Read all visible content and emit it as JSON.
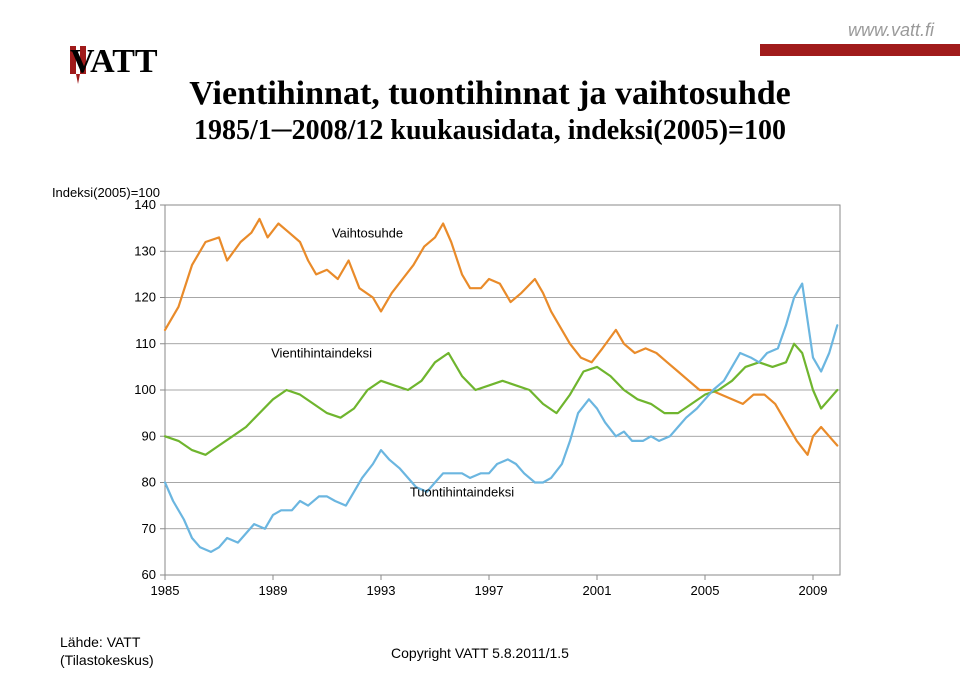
{
  "header": {
    "url": "www.vatt.fi",
    "logo_text": "VATT",
    "logo_red": "#a01b1b",
    "logo_black": "#000000"
  },
  "title": {
    "line1": "Vientihinnat, tuontihinnat ja vaihtosuhde",
    "line2": "1985/1─2008/12 kuukausidata, indeksi(2005)=100"
  },
  "chart": {
    "type": "line",
    "y_axis_title": "Indeksi(2005)=100",
    "y_axis_title_fontsize": 13,
    "ylim": [
      60,
      140
    ],
    "ytick_step": 10,
    "xlim": [
      1985,
      2010
    ],
    "xticks": [
      1985,
      1989,
      1993,
      1997,
      2001,
      2005,
      2009
    ],
    "background_color": "#ffffff",
    "grid_color": "#8a8a8a",
    "axis_color": "#8a8a8a",
    "tick_fontsize": 13,
    "tick_color": "#000000",
    "line_width": 2.2,
    "series": [
      {
        "name": "Vaihtosuhde",
        "label": "Vaihtosuhde",
        "color": "#e98b2a",
        "label_x": 1992.5,
        "label_y": 133,
        "data": [
          [
            1985.0,
            113
          ],
          [
            1985.5,
            118
          ],
          [
            1986.0,
            127
          ],
          [
            1986.5,
            132
          ],
          [
            1987.0,
            133
          ],
          [
            1987.3,
            128
          ],
          [
            1987.8,
            132
          ],
          [
            1988.2,
            134
          ],
          [
            1988.5,
            137
          ],
          [
            1988.8,
            133
          ],
          [
            1989.2,
            136
          ],
          [
            1989.6,
            134
          ],
          [
            1990.0,
            132
          ],
          [
            1990.3,
            128
          ],
          [
            1990.6,
            125
          ],
          [
            1991.0,
            126
          ],
          [
            1991.4,
            124
          ],
          [
            1991.8,
            128
          ],
          [
            1992.2,
            122
          ],
          [
            1992.7,
            120
          ],
          [
            1993.0,
            117
          ],
          [
            1993.4,
            121
          ],
          [
            1993.8,
            124
          ],
          [
            1994.2,
            127
          ],
          [
            1994.6,
            131
          ],
          [
            1995.0,
            133
          ],
          [
            1995.3,
            136
          ],
          [
            1995.6,
            132
          ],
          [
            1996.0,
            125
          ],
          [
            1996.3,
            122
          ],
          [
            1996.7,
            122
          ],
          [
            1997.0,
            124
          ],
          [
            1997.4,
            123
          ],
          [
            1997.8,
            119
          ],
          [
            1998.2,
            121
          ],
          [
            1998.7,
            124
          ],
          [
            1999.0,
            121
          ],
          [
            1999.3,
            117
          ],
          [
            1999.7,
            113
          ],
          [
            2000.0,
            110
          ],
          [
            2000.4,
            107
          ],
          [
            2000.8,
            106
          ],
          [
            2001.2,
            109
          ],
          [
            2001.7,
            113
          ],
          [
            2002.0,
            110
          ],
          [
            2002.4,
            108
          ],
          [
            2002.8,
            109
          ],
          [
            2003.2,
            108
          ],
          [
            2003.6,
            106
          ],
          [
            2004.0,
            104
          ],
          [
            2004.4,
            102
          ],
          [
            2004.8,
            100
          ],
          [
            2005.2,
            100
          ],
          [
            2005.6,
            99
          ],
          [
            2006.0,
            98
          ],
          [
            2006.4,
            97
          ],
          [
            2006.8,
            99
          ],
          [
            2007.2,
            99
          ],
          [
            2007.6,
            97
          ],
          [
            2008.0,
            93
          ],
          [
            2008.4,
            89
          ],
          [
            2008.8,
            86
          ],
          [
            2009.0,
            90
          ],
          [
            2009.3,
            92
          ],
          [
            2009.6,
            90
          ],
          [
            2009.9,
            88
          ]
        ]
      },
      {
        "name": "Vientihintaindeksi",
        "label": "Vientihintaindeksi",
        "color": "#6fb52e",
        "label_x": 1990.8,
        "label_y": 107,
        "data": [
          [
            1985.0,
            90
          ],
          [
            1985.5,
            89
          ],
          [
            1986.0,
            87
          ],
          [
            1986.5,
            86
          ],
          [
            1987.0,
            88
          ],
          [
            1987.5,
            90
          ],
          [
            1988.0,
            92
          ],
          [
            1988.5,
            95
          ],
          [
            1989.0,
            98
          ],
          [
            1989.5,
            100
          ],
          [
            1990.0,
            99
          ],
          [
            1990.5,
            97
          ],
          [
            1991.0,
            95
          ],
          [
            1991.5,
            94
          ],
          [
            1992.0,
            96
          ],
          [
            1992.5,
            100
          ],
          [
            1993.0,
            102
          ],
          [
            1993.5,
            101
          ],
          [
            1994.0,
            100
          ],
          [
            1994.5,
            102
          ],
          [
            1995.0,
            106
          ],
          [
            1995.5,
            108
          ],
          [
            1996.0,
            103
          ],
          [
            1996.5,
            100
          ],
          [
            1997.0,
            101
          ],
          [
            1997.5,
            102
          ],
          [
            1998.0,
            101
          ],
          [
            1998.5,
            100
          ],
          [
            1999.0,
            97
          ],
          [
            1999.5,
            95
          ],
          [
            2000.0,
            99
          ],
          [
            2000.5,
            104
          ],
          [
            2001.0,
            105
          ],
          [
            2001.5,
            103
          ],
          [
            2002.0,
            100
          ],
          [
            2002.5,
            98
          ],
          [
            2003.0,
            97
          ],
          [
            2003.5,
            95
          ],
          [
            2004.0,
            95
          ],
          [
            2004.5,
            97
          ],
          [
            2005.0,
            99
          ],
          [
            2005.5,
            100
          ],
          [
            2006.0,
            102
          ],
          [
            2006.5,
            105
          ],
          [
            2007.0,
            106
          ],
          [
            2007.5,
            105
          ],
          [
            2008.0,
            106
          ],
          [
            2008.3,
            110
          ],
          [
            2008.6,
            108
          ],
          [
            2009.0,
            100
          ],
          [
            2009.3,
            96
          ],
          [
            2009.6,
            98
          ],
          [
            2009.9,
            100
          ]
        ]
      },
      {
        "name": "Tuontihintaindeksi",
        "label": "Tuontihintaindeksi",
        "color": "#6bb6e0",
        "label_x": 1996.0,
        "label_y": 77,
        "data": [
          [
            1985.0,
            80
          ],
          [
            1985.3,
            76
          ],
          [
            1985.7,
            72
          ],
          [
            1986.0,
            68
          ],
          [
            1986.3,
            66
          ],
          [
            1986.7,
            65
          ],
          [
            1987.0,
            66
          ],
          [
            1987.3,
            68
          ],
          [
            1987.7,
            67
          ],
          [
            1988.0,
            69
          ],
          [
            1988.3,
            71
          ],
          [
            1988.7,
            70
          ],
          [
            1989.0,
            73
          ],
          [
            1989.3,
            74
          ],
          [
            1989.7,
            74
          ],
          [
            1990.0,
            76
          ],
          [
            1990.3,
            75
          ],
          [
            1990.7,
            77
          ],
          [
            1991.0,
            77
          ],
          [
            1991.3,
            76
          ],
          [
            1991.7,
            75
          ],
          [
            1992.0,
            78
          ],
          [
            1992.3,
            81
          ],
          [
            1992.7,
            84
          ],
          [
            1993.0,
            87
          ],
          [
            1993.3,
            85
          ],
          [
            1993.7,
            83
          ],
          [
            1994.0,
            81
          ],
          [
            1994.3,
            79
          ],
          [
            1994.7,
            78
          ],
          [
            1995.0,
            80
          ],
          [
            1995.3,
            82
          ],
          [
            1995.7,
            82
          ],
          [
            1996.0,
            82
          ],
          [
            1996.3,
            81
          ],
          [
            1996.7,
            82
          ],
          [
            1997.0,
            82
          ],
          [
            1997.3,
            84
          ],
          [
            1997.7,
            85
          ],
          [
            1998.0,
            84
          ],
          [
            1998.3,
            82
          ],
          [
            1998.7,
            80
          ],
          [
            1999.0,
            80
          ],
          [
            1999.3,
            81
          ],
          [
            1999.7,
            84
          ],
          [
            2000.0,
            89
          ],
          [
            2000.3,
            95
          ],
          [
            2000.7,
            98
          ],
          [
            2001.0,
            96
          ],
          [
            2001.3,
            93
          ],
          [
            2001.7,
            90
          ],
          [
            2002.0,
            91
          ],
          [
            2002.3,
            89
          ],
          [
            2002.7,
            89
          ],
          [
            2003.0,
            90
          ],
          [
            2003.3,
            89
          ],
          [
            2003.7,
            90
          ],
          [
            2004.0,
            92
          ],
          [
            2004.3,
            94
          ],
          [
            2004.7,
            96
          ],
          [
            2005.0,
            98
          ],
          [
            2005.3,
            100
          ],
          [
            2005.7,
            102
          ],
          [
            2006.0,
            105
          ],
          [
            2006.3,
            108
          ],
          [
            2006.7,
            107
          ],
          [
            2007.0,
            106
          ],
          [
            2007.3,
            108
          ],
          [
            2007.7,
            109
          ],
          [
            2008.0,
            114
          ],
          [
            2008.3,
            120
          ],
          [
            2008.6,
            123
          ],
          [
            2008.8,
            115
          ],
          [
            2009.0,
            107
          ],
          [
            2009.3,
            104
          ],
          [
            2009.6,
            108
          ],
          [
            2009.9,
            114
          ]
        ]
      }
    ]
  },
  "footer": {
    "source_line1": "Lähde: VATT",
    "source_line2": "(Tilastokeskus)",
    "copyright": "Copyright VATT 5.8.2011/1.5"
  }
}
